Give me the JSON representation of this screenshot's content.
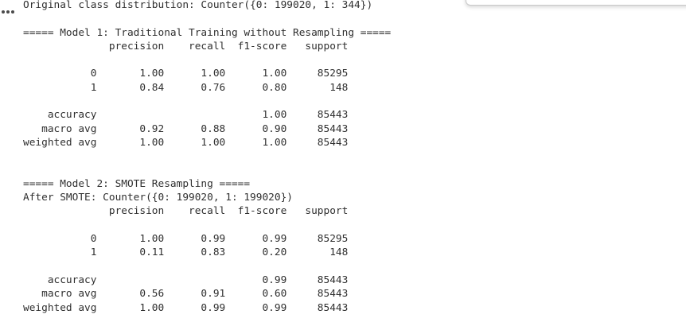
{
  "colors": {
    "background": "#ffffff",
    "text": "#2f2f2f",
    "toolbar_border": "#c9c9c9",
    "ellipsis_dots": "#4a4a4a"
  },
  "gutter": {
    "more_actions_icon": "horizontal-ellipsis-icon"
  },
  "cell_toolbar": {
    "state": "partially-visible-cut-off-at-top"
  },
  "output": {
    "distribution_line": "Original class distribution: Counter({0: 199020, 1: 344})",
    "model1": {
      "title": "===== Model 1: Traditional Training without Resampling =====",
      "report": {
        "columns": [
          "precision",
          "recall",
          "f1-score",
          "support"
        ],
        "class_rows": [
          {
            "label": "0",
            "precision": "1.00",
            "recall": "1.00",
            "f1": "1.00",
            "support": "85295"
          },
          {
            "label": "1",
            "precision": "0.84",
            "recall": "0.76",
            "f1": "0.80",
            "support": "148"
          }
        ],
        "summary_rows": [
          {
            "label": "accuracy",
            "precision": "",
            "recall": "",
            "f1": "1.00",
            "support": "85443"
          },
          {
            "label": "macro avg",
            "precision": "0.92",
            "recall": "0.88",
            "f1": "0.90",
            "support": "85443"
          },
          {
            "label": "weighted avg",
            "precision": "1.00",
            "recall": "1.00",
            "f1": "1.00",
            "support": "85443"
          }
        ]
      }
    },
    "model2": {
      "title": "===== Model 2: SMOTE Resampling =====",
      "after_line": "After SMOTE: Counter({0: 199020, 1: 199020})",
      "report": {
        "columns": [
          "precision",
          "recall",
          "f1-score",
          "support"
        ],
        "class_rows": [
          {
            "label": "0",
            "precision": "1.00",
            "recall": "0.99",
            "f1": "0.99",
            "support": "85295"
          },
          {
            "label": "1",
            "precision": "0.11",
            "recall": "0.83",
            "f1": "0.20",
            "support": "148"
          }
        ],
        "summary_rows": [
          {
            "label": "accuracy",
            "precision": "",
            "recall": "",
            "f1": "0.99",
            "support": "85443"
          },
          {
            "label": "macro avg",
            "precision": "0.56",
            "recall": "0.91",
            "f1": "0.60",
            "support": "85443"
          },
          {
            "label": "weighted avg",
            "precision": "1.00",
            "recall": "0.99",
            "f1": "0.99",
            "support": "85443"
          }
        ]
      }
    }
  }
}
